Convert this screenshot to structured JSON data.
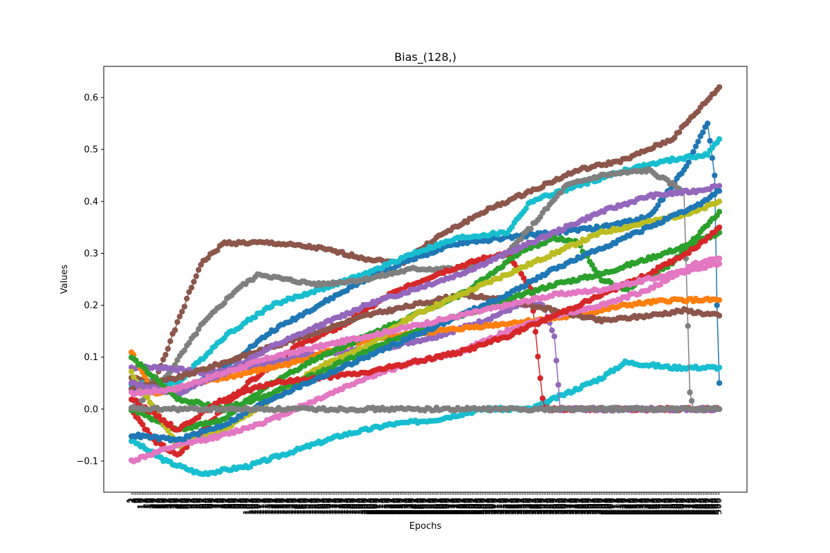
{
  "chart_data": {
    "type": "line",
    "title": "Bias_(128,)",
    "xlabel": "Epochs",
    "ylabel": "Values",
    "xlim": [
      1,
      500
    ],
    "ylim": [
      -0.16,
      0.66
    ],
    "yticks": [
      -0.1,
      0.0,
      0.1,
      0.2,
      0.3,
      0.4,
      0.5,
      0.6
    ],
    "ytick_labels": [
      "−0.1",
      "0.0",
      "0.1",
      "0.2",
      "0.3",
      "0.4",
      "0.5",
      "0.6"
    ],
    "xticks_note": "one tick per epoch 1..500, labels rotated vertically and overlapping",
    "markers": true,
    "grid": false,
    "legend": "none",
    "colors": [
      "#1f77b4",
      "#ff7f0e",
      "#2ca02c",
      "#d62728",
      "#9467bd",
      "#8c564b",
      "#e377c2",
      "#7f7f7f",
      "#bcbd22",
      "#17becf"
    ],
    "series": [
      {
        "color": "#8c564b",
        "points": [
          [
            1,
            0.06
          ],
          [
            20,
            0.05
          ],
          [
            60,
            0.28
          ],
          [
            80,
            0.32
          ],
          [
            120,
            0.32
          ],
          [
            160,
            0.31
          ],
          [
            180,
            0.3
          ],
          [
            200,
            0.29
          ],
          [
            230,
            0.28
          ],
          [
            260,
            0.33
          ],
          [
            300,
            0.38
          ],
          [
            340,
            0.42
          ],
          [
            380,
            0.46
          ],
          [
            420,
            0.48
          ],
          [
            460,
            0.52
          ],
          [
            500,
            0.62
          ]
        ]
      },
      {
        "color": "#1f77b4",
        "points": [
          [
            1,
            0.04
          ],
          [
            40,
            0.03
          ],
          [
            80,
            0.08
          ],
          [
            120,
            0.15
          ],
          [
            160,
            0.2
          ],
          [
            200,
            0.25
          ],
          [
            240,
            0.29
          ],
          [
            280,
            0.32
          ],
          [
            320,
            0.33
          ],
          [
            360,
            0.34
          ],
          [
            400,
            0.35
          ],
          [
            440,
            0.37
          ],
          [
            470,
            0.46
          ],
          [
            490,
            0.55
          ],
          [
            496,
            0.45
          ],
          [
            498,
            0.2
          ],
          [
            500,
            0.05
          ]
        ]
      },
      {
        "color": "#17becf",
        "points": [
          [
            1,
            -0.06
          ],
          [
            30,
            -0.1
          ],
          [
            60,
            -0.125
          ],
          [
            100,
            -0.11
          ],
          [
            140,
            -0.08
          ],
          [
            180,
            -0.05
          ],
          [
            220,
            -0.03
          ],
          [
            260,
            -0.02
          ],
          [
            300,
            0.0
          ],
          [
            340,
            0.0
          ],
          [
            370,
            0.03
          ],
          [
            400,
            0.06
          ],
          [
            420,
            0.09
          ],
          [
            460,
            0.08
          ],
          [
            490,
            0.08
          ],
          [
            500,
            0.08
          ]
        ]
      },
      {
        "color": "#17becf",
        "points": [
          [
            1,
            0.05
          ],
          [
            40,
            0.05
          ],
          [
            80,
            0.14
          ],
          [
            120,
            0.2
          ],
          [
            160,
            0.23
          ],
          [
            200,
            0.26
          ],
          [
            240,
            0.3
          ],
          [
            280,
            0.33
          ],
          [
            320,
            0.34
          ],
          [
            340,
            0.4
          ],
          [
            380,
            0.43
          ],
          [
            420,
            0.46
          ],
          [
            460,
            0.48
          ],
          [
            490,
            0.49
          ],
          [
            500,
            0.52
          ]
        ]
      },
      {
        "color": "#7f7f7f",
        "points": [
          [
            1,
            0.0
          ],
          [
            30,
            0.06
          ],
          [
            60,
            0.16
          ],
          [
            90,
            0.23
          ],
          [
            110,
            0.26
          ],
          [
            130,
            0.25
          ],
          [
            160,
            0.24
          ],
          [
            200,
            0.25
          ],
          [
            240,
            0.27
          ],
          [
            280,
            0.27
          ],
          [
            320,
            0.3
          ],
          [
            340,
            0.35
          ],
          [
            370,
            0.43
          ],
          [
            400,
            0.45
          ],
          [
            440,
            0.46
          ],
          [
            470,
            0.42
          ],
          [
            475,
            0.03
          ],
          [
            478,
            0.0
          ],
          [
            500,
            0.0
          ]
        ]
      },
      {
        "color": "#d62728",
        "points": [
          [
            1,
            0.0
          ],
          [
            20,
            -0.06
          ],
          [
            40,
            -0.09
          ],
          [
            70,
            -0.02
          ],
          [
            100,
            0.05
          ],
          [
            140,
            0.12
          ],
          [
            180,
            0.16
          ],
          [
            220,
            0.22
          ],
          [
            260,
            0.26
          ],
          [
            300,
            0.29
          ],
          [
            320,
            0.3
          ],
          [
            340,
            0.23
          ],
          [
            350,
            0.02
          ],
          [
            352,
            0.0
          ],
          [
            500,
            0.0
          ]
        ]
      },
      {
        "color": "#9467bd",
        "points": [
          [
            1,
            0.08
          ],
          [
            30,
            0.08
          ],
          [
            60,
            0.07
          ],
          [
            100,
            0.08
          ],
          [
            140,
            0.1
          ],
          [
            180,
            0.11
          ],
          [
            220,
            0.12
          ],
          [
            260,
            0.14
          ],
          [
            300,
            0.17
          ],
          [
            330,
            0.2
          ],
          [
            350,
            0.2
          ],
          [
            360,
            0.14
          ],
          [
            365,
            0.0
          ],
          [
            500,
            0.0
          ]
        ]
      },
      {
        "color": "#ff7f0e",
        "points": [
          [
            1,
            0.11
          ],
          [
            20,
            0.03
          ],
          [
            60,
            0.05
          ],
          [
            100,
            0.07
          ],
          [
            140,
            0.09
          ],
          [
            180,
            0.12
          ],
          [
            220,
            0.14
          ],
          [
            260,
            0.15
          ],
          [
            300,
            0.16
          ],
          [
            340,
            0.17
          ],
          [
            380,
            0.18
          ],
          [
            420,
            0.2
          ],
          [
            460,
            0.21
          ],
          [
            500,
            0.21
          ]
        ]
      },
      {
        "color": "#8c564b",
        "points": [
          [
            1,
            0.04
          ],
          [
            40,
            0.06
          ],
          [
            80,
            0.09
          ],
          [
            120,
            0.12
          ],
          [
            160,
            0.15
          ],
          [
            200,
            0.18
          ],
          [
            240,
            0.2
          ],
          [
            280,
            0.22
          ],
          [
            320,
            0.21
          ],
          [
            360,
            0.19
          ],
          [
            400,
            0.17
          ],
          [
            440,
            0.18
          ],
          [
            470,
            0.19
          ],
          [
            500,
            0.18
          ]
        ]
      },
      {
        "color": "#2ca02c",
        "points": [
          [
            1,
            0.0
          ],
          [
            40,
            -0.04
          ],
          [
            80,
            -0.02
          ],
          [
            120,
            0.05
          ],
          [
            160,
            0.1
          ],
          [
            200,
            0.14
          ],
          [
            240,
            0.18
          ],
          [
            280,
            0.22
          ],
          [
            300,
            0.25
          ],
          [
            330,
            0.3
          ],
          [
            360,
            0.33
          ],
          [
            380,
            0.32
          ],
          [
            400,
            0.25
          ],
          [
            420,
            0.23
          ],
          [
            460,
            0.28
          ],
          [
            500,
            0.38
          ]
        ]
      },
      {
        "color": "#bcbd22",
        "points": [
          [
            1,
            0.07
          ],
          [
            40,
            -0.07
          ],
          [
            80,
            -0.04
          ],
          [
            120,
            0.02
          ],
          [
            160,
            0.08
          ],
          [
            200,
            0.12
          ],
          [
            240,
            0.18
          ],
          [
            280,
            0.22
          ],
          [
            320,
            0.26
          ],
          [
            360,
            0.3
          ],
          [
            400,
            0.34
          ],
          [
            440,
            0.36
          ],
          [
            480,
            0.38
          ],
          [
            500,
            0.4
          ]
        ]
      },
      {
        "color": "#e377c2",
        "points": [
          [
            1,
            -0.1
          ],
          [
            40,
            -0.07
          ],
          [
            80,
            -0.05
          ],
          [
            120,
            -0.02
          ],
          [
            160,
            0.02
          ],
          [
            200,
            0.06
          ],
          [
            240,
            0.09
          ],
          [
            280,
            0.11
          ],
          [
            320,
            0.15
          ],
          [
            360,
            0.18
          ],
          [
            400,
            0.2
          ],
          [
            440,
            0.23
          ],
          [
            480,
            0.28
          ],
          [
            500,
            0.29
          ]
        ]
      },
      {
        "color": "#9467bd",
        "points": [
          [
            1,
            0.05
          ],
          [
            40,
            0.03
          ],
          [
            80,
            0.07
          ],
          [
            120,
            0.12
          ],
          [
            160,
            0.16
          ],
          [
            200,
            0.2
          ],
          [
            240,
            0.23
          ],
          [
            280,
            0.26
          ],
          [
            320,
            0.3
          ],
          [
            360,
            0.34
          ],
          [
            400,
            0.38
          ],
          [
            440,
            0.41
          ],
          [
            480,
            0.42
          ],
          [
            500,
            0.43
          ]
        ]
      },
      {
        "color": "#2ca02c",
        "points": [
          [
            1,
            0.1
          ],
          [
            40,
            0.02
          ],
          [
            80,
            0.0
          ],
          [
            120,
            0.03
          ],
          [
            160,
            0.07
          ],
          [
            200,
            0.11
          ],
          [
            240,
            0.15
          ],
          [
            280,
            0.18
          ],
          [
            320,
            0.21
          ],
          [
            360,
            0.24
          ],
          [
            400,
            0.26
          ],
          [
            440,
            0.29
          ],
          [
            480,
            0.32
          ],
          [
            500,
            0.34
          ]
        ]
      },
      {
        "color": "#d62728",
        "points": [
          [
            1,
            0.02
          ],
          [
            40,
            -0.04
          ],
          [
            80,
            0.02
          ],
          [
            120,
            0.05
          ],
          [
            160,
            0.06
          ],
          [
            200,
            0.07
          ],
          [
            240,
            0.09
          ],
          [
            280,
            0.11
          ],
          [
            320,
            0.14
          ],
          [
            360,
            0.18
          ],
          [
            400,
            0.22
          ],
          [
            440,
            0.26
          ],
          [
            480,
            0.31
          ],
          [
            500,
            0.35
          ]
        ]
      },
      {
        "color": "#1f77b4",
        "points": [
          [
            1,
            -0.05
          ],
          [
            40,
            -0.06
          ],
          [
            80,
            -0.03
          ],
          [
            120,
            0.02
          ],
          [
            160,
            0.06
          ],
          [
            200,
            0.1
          ],
          [
            240,
            0.14
          ],
          [
            280,
            0.18
          ],
          [
            320,
            0.22
          ],
          [
            360,
            0.27
          ],
          [
            400,
            0.31
          ],
          [
            440,
            0.35
          ],
          [
            480,
            0.39
          ],
          [
            500,
            0.42
          ]
        ]
      },
      {
        "color": "#e377c2",
        "points": [
          [
            1,
            0.03
          ],
          [
            40,
            0.04
          ],
          [
            80,
            0.07
          ],
          [
            120,
            0.1
          ],
          [
            160,
            0.12
          ],
          [
            200,
            0.14
          ],
          [
            240,
            0.16
          ],
          [
            280,
            0.18
          ],
          [
            320,
            0.2
          ],
          [
            360,
            0.22
          ],
          [
            400,
            0.23
          ],
          [
            440,
            0.25
          ],
          [
            480,
            0.27
          ],
          [
            500,
            0.28
          ]
        ]
      },
      {
        "color": "#7f7f7f",
        "points": [
          [
            1,
            0.0
          ],
          [
            100,
            0.0
          ],
          [
            200,
            0.0
          ],
          [
            300,
            0.0
          ],
          [
            400,
            0.0
          ],
          [
            500,
            0.0
          ]
        ]
      }
    ]
  }
}
